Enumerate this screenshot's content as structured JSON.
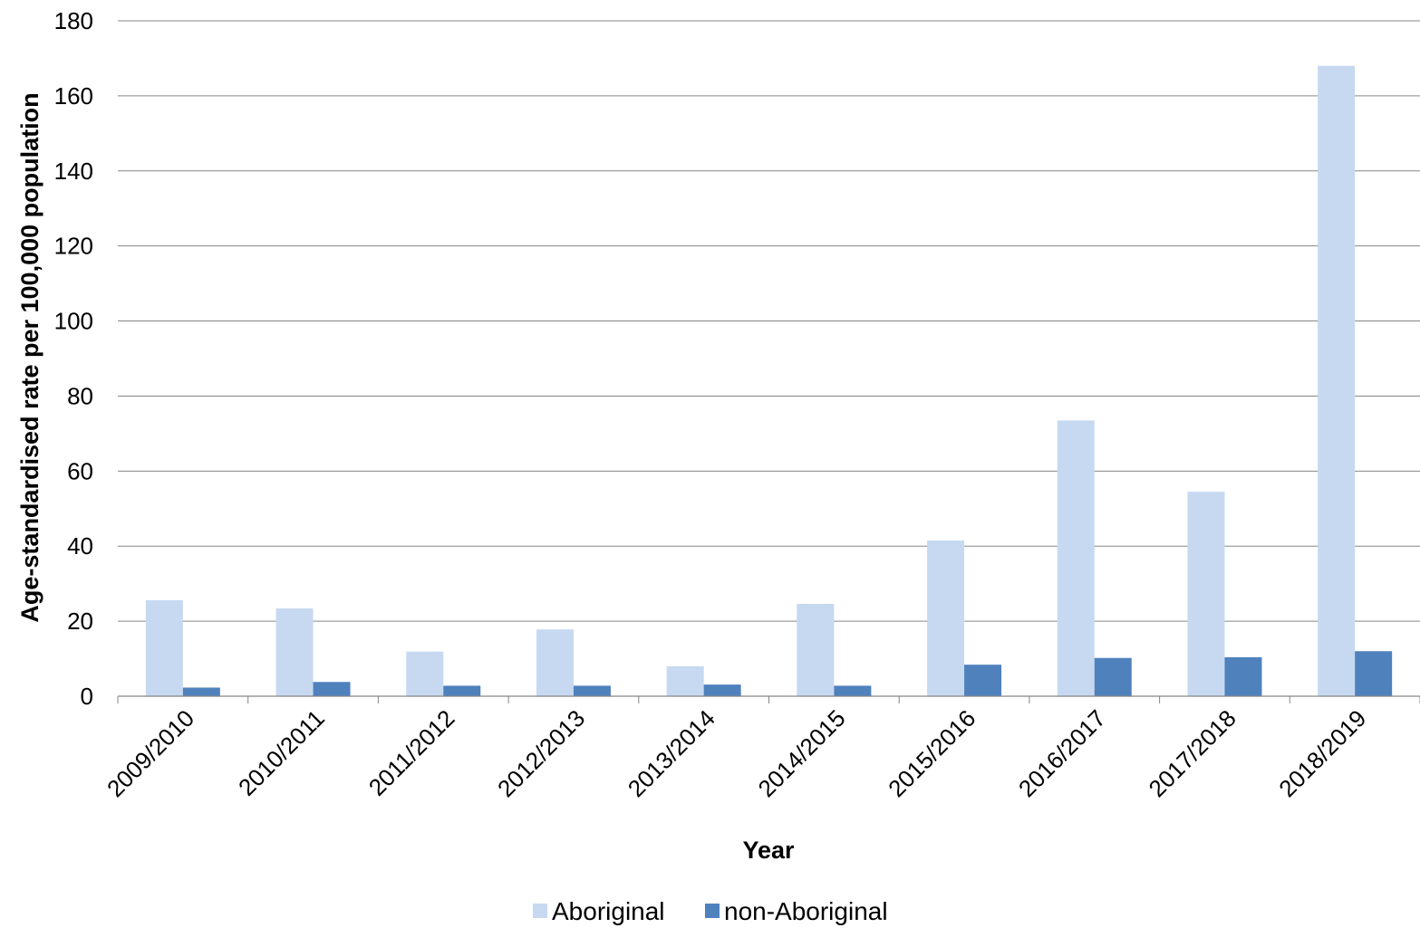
{
  "chart_data": {
    "type": "bar",
    "title": "",
    "xlabel": "Year",
    "ylabel": "Age-standardised rate per 100,000 population",
    "ylim": [
      0,
      180
    ],
    "yticks": [
      0,
      20,
      40,
      60,
      80,
      100,
      120,
      140,
      160,
      180
    ],
    "grid": true,
    "legend_position": "bottom",
    "categories": [
      "2009/2010",
      "2010/2011",
      "2011/2012",
      "2012/2013",
      "2013/2014",
      "2014/2015",
      "2015/2016",
      "2016/2017",
      "2017/2018",
      "2018/2019"
    ],
    "series": [
      {
        "name": "Aboriginal",
        "color": "#c6d9f1",
        "values": [
          25.6,
          23.4,
          11.9,
          17.8,
          8.0,
          24.6,
          41.5,
          73.5,
          54.5,
          168.0
        ]
      },
      {
        "name": "non-Aboriginal",
        "color": "#4f81bd",
        "values": [
          2.3,
          3.8,
          2.8,
          2.8,
          3.1,
          2.8,
          8.4,
          10.2,
          10.4,
          12.0
        ]
      }
    ]
  }
}
